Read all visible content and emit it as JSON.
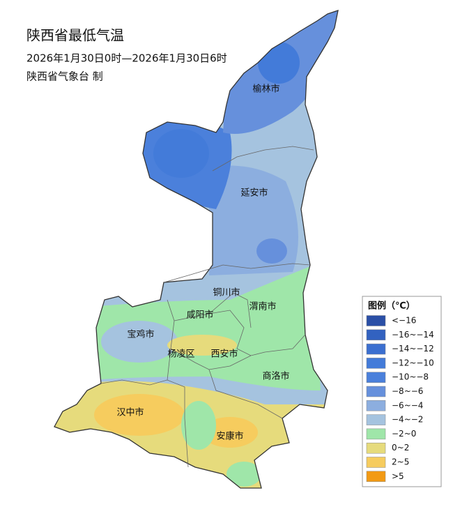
{
  "header": {
    "title": "陕西省最低气温",
    "subtitle": "2026年1月30日0时—2026年1月30日6时",
    "issuer": "陕西省气象台 制"
  },
  "cities": [
    {
      "label": "榆林市"
    },
    {
      "label": "延安市"
    },
    {
      "label": "铜川市"
    },
    {
      "label": "渭南市"
    },
    {
      "label": "咸阳市"
    },
    {
      "label": "宝鸡市"
    },
    {
      "label": "杨凌区"
    },
    {
      "label": "西安市"
    },
    {
      "label": "商洛市"
    },
    {
      "label": "汉中市"
    },
    {
      "label": "安康市"
    }
  ],
  "legend": {
    "title": "图例（℃）",
    "items": [
      {
        "label": "<−16",
        "color": "#2a4fa6"
      },
      {
        "label": "−16~−14",
        "color": "#3262c0"
      },
      {
        "label": "−14~−12",
        "color": "#3b6fd0"
      },
      {
        "label": "−12~−10",
        "color": "#437bd9"
      },
      {
        "label": "−10~−8",
        "color": "#4b80db"
      },
      {
        "label": "−8~−6",
        "color": "#6690dc"
      },
      {
        "label": "−6~−4",
        "color": "#8caedf"
      },
      {
        "label": "−4~−2",
        "color": "#a5c3df"
      },
      {
        "label": "−2~0",
        "color": "#9fe6a9"
      },
      {
        "label": "0~2",
        "color": "#e6db7c"
      },
      {
        "label": "2~5",
        "color": "#f6cc5e"
      },
      {
        "label": ">5",
        "color": "#f29a14"
      }
    ]
  }
}
